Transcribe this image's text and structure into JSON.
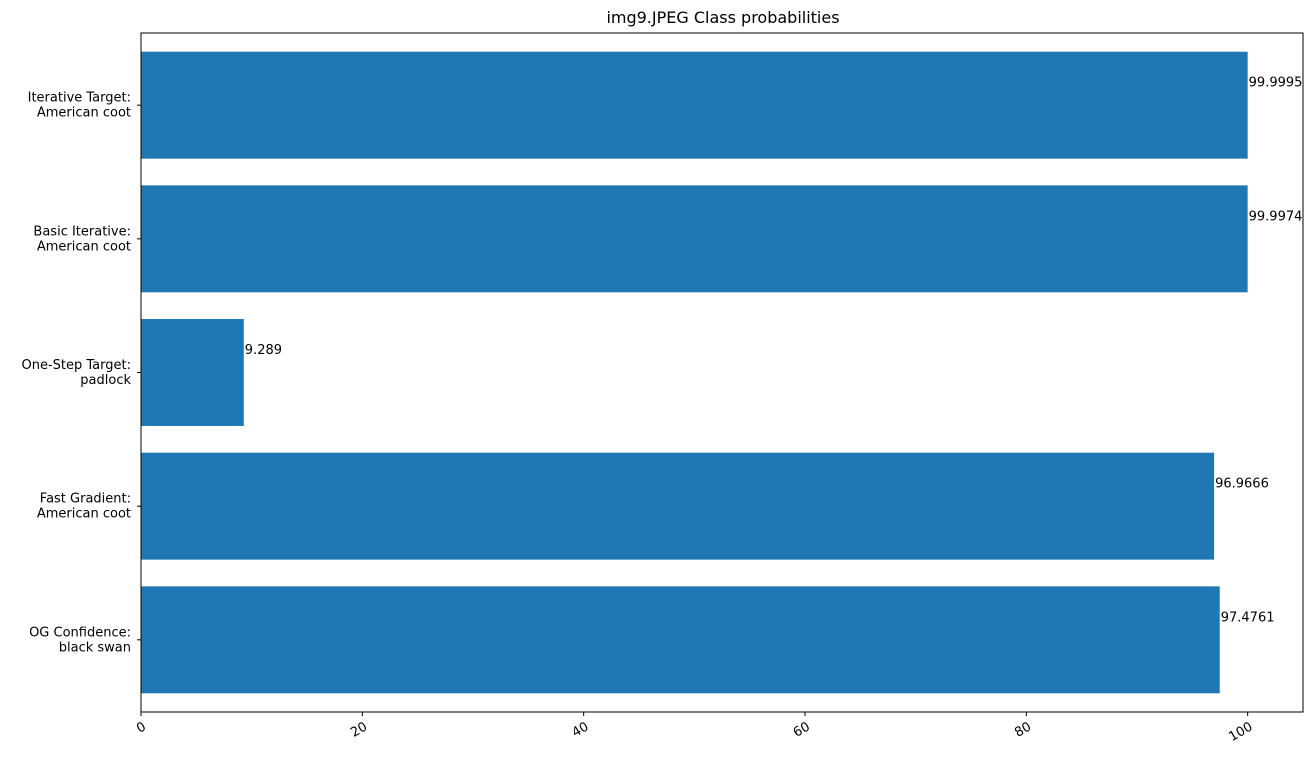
{
  "chart_data": {
    "type": "bar",
    "orientation": "horizontal",
    "title": "img9.JPEG Class probabilities",
    "xlabel": "",
    "ylabel": "",
    "xlim": [
      0,
      105
    ],
    "xticks": [
      0,
      20,
      40,
      60,
      80,
      100
    ],
    "grid": false,
    "bar_color": "#1f77b4",
    "categories": [
      [
        "OG Confidence:",
        "black swan"
      ],
      [
        "Fast Gradient:",
        "American coot"
      ],
      [
        "One-Step Target:",
        "padlock"
      ],
      [
        "Basic Iterative:",
        "American coot"
      ],
      [
        "Iterative Target:",
        "American coot"
      ]
    ],
    "values": [
      97.4761,
      96.9666,
      9.289,
      99.9974,
      99.9995
    ],
    "value_labels": [
      "97.4761",
      "96.9666",
      "9.289",
      "99.9974",
      "99.9995"
    ]
  }
}
